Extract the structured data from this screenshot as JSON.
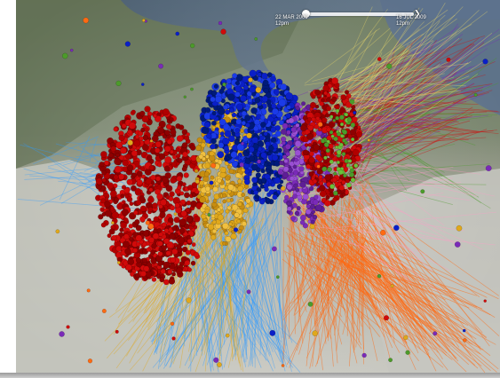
{
  "viewer": {
    "start_date": "22 MAR 2009",
    "start_time": "12pm",
    "end_date": "16 JUL 2009",
    "end_time": "12pm"
  },
  "colors": {
    "red": "#d10a0a",
    "dark_red": "#8e0000",
    "blue": "#0a1fc8",
    "dark_blue": "#001a7a",
    "yellow": "#e0a81c",
    "purple": "#7a2ab8",
    "orange": "#ff6a12",
    "light_blue": "#2f9bff",
    "green": "#4c9b2a"
  },
  "icons": {
    "slider_knob": "time-slider-knob-icon",
    "slider_end": "time-slider-end-icon"
  }
}
